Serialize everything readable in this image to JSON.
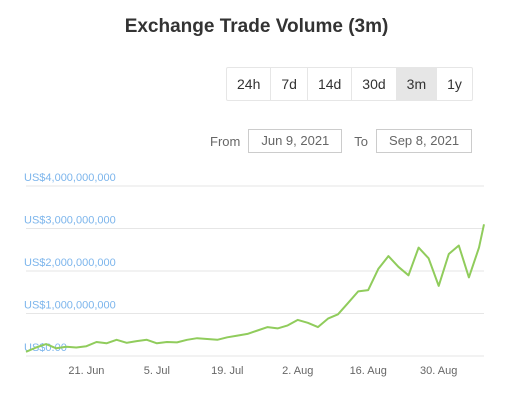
{
  "title": "Exchange Trade Volume (3m)",
  "range_buttons": [
    {
      "label": "24h",
      "active": false
    },
    {
      "label": "7d",
      "active": false
    },
    {
      "label": "14d",
      "active": false
    },
    {
      "label": "30d",
      "active": false
    },
    {
      "label": "3m",
      "active": true
    },
    {
      "label": "1y",
      "active": false
    }
  ],
  "date_range": {
    "from_label": "From",
    "from_value": "Jun 9, 2021",
    "to_label": "To",
    "to_value": "Sep 8, 2021"
  },
  "chart_data": {
    "type": "line",
    "title": "Exchange Trade Volume (3m)",
    "ylim": [
      0,
      4000000000
    ],
    "y_ticks": [
      0,
      1000000000,
      2000000000,
      3000000000,
      4000000000
    ],
    "y_tick_labels": [
      "US$0.00",
      "US$1,000,000,000",
      "US$2,000,000,000",
      "US$3,000,000,000",
      "US$4,000,000,000"
    ],
    "x_ticks": [
      "2021-06-21",
      "2021-07-05",
      "2021-07-19",
      "2021-08-02",
      "2021-08-16",
      "2021-08-30"
    ],
    "x_tick_labels": [
      "21. Jun",
      "5. Jul",
      "19. Jul",
      "2. Aug",
      "16. Aug",
      "30. Aug"
    ],
    "x_range": [
      "2021-06-09",
      "2021-09-08"
    ],
    "grid": true,
    "line_color": "#90cc5c",
    "axis_label_color": "#7cb5ec",
    "series": [
      {
        "x": [
          "2021-06-09",
          "2021-06-11",
          "2021-06-13",
          "2021-06-15",
          "2021-06-17",
          "2021-06-19",
          "2021-06-21",
          "2021-06-23",
          "2021-06-25",
          "2021-06-27",
          "2021-06-29",
          "2021-07-01",
          "2021-07-03",
          "2021-07-05",
          "2021-07-07",
          "2021-07-09",
          "2021-07-11",
          "2021-07-13",
          "2021-07-15",
          "2021-07-17",
          "2021-07-19",
          "2021-07-21",
          "2021-07-23",
          "2021-07-25",
          "2021-07-27",
          "2021-07-29",
          "2021-07-31",
          "2021-08-02",
          "2021-08-04",
          "2021-08-06",
          "2021-08-08",
          "2021-08-10",
          "2021-08-12",
          "2021-08-14",
          "2021-08-16",
          "2021-08-18",
          "2021-08-20",
          "2021-08-22",
          "2021-08-24",
          "2021-08-26",
          "2021-08-28",
          "2021-08-30",
          "2021-09-01",
          "2021-09-03",
          "2021-09-05",
          "2021-09-07",
          "2021-09-08"
        ],
        "values": [
          100000000,
          200000000,
          280000000,
          180000000,
          220000000,
          200000000,
          230000000,
          330000000,
          300000000,
          380000000,
          310000000,
          350000000,
          380000000,
          300000000,
          330000000,
          320000000,
          380000000,
          420000000,
          400000000,
          380000000,
          440000000,
          480000000,
          520000000,
          600000000,
          680000000,
          650000000,
          720000000,
          850000000,
          780000000,
          680000000,
          880000000,
          980000000,
          1250000000,
          1520000000,
          1550000000,
          2050000000,
          2350000000,
          2100000000,
          1900000000,
          2550000000,
          2300000000,
          1650000000,
          2400000000,
          2600000000,
          1850000000,
          2550000000,
          3100000000
        ]
      }
    ]
  }
}
